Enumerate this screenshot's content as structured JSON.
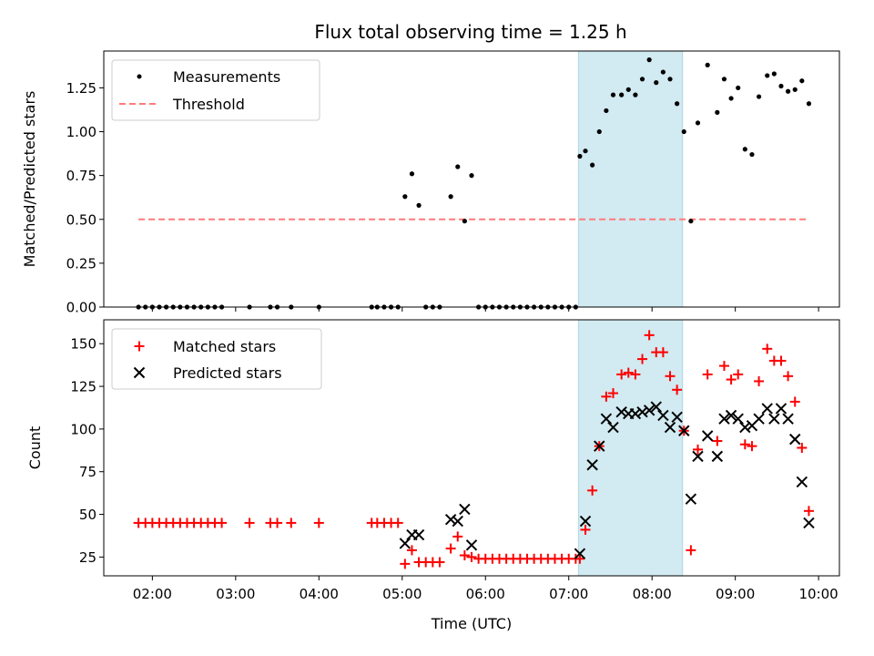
{
  "chart_data": {
    "title": "Flux total observing time = 1.25 h",
    "xlabel": "Time (UTC)",
    "x_range": [
      "01:25",
      "10:15"
    ],
    "x_ticks": [
      "02:00",
      "03:00",
      "04:00",
      "05:00",
      "06:00",
      "07:00",
      "08:00",
      "09:00",
      "10:00"
    ],
    "highlight_span": [
      "07:07",
      "08:22"
    ],
    "highlight_color": "#add8e6",
    "panels": [
      {
        "id": "ratio",
        "type": "scatter",
        "ylabel": "Matched/Predicted stars",
        "ylim": [
          0,
          1.46
        ],
        "y_ticks": [
          "0.00",
          "0.25",
          "0.50",
          "0.75",
          "1.00",
          "1.25"
        ],
        "legend_position": "top-left",
        "series": [
          {
            "name": "Measurements",
            "marker": "dot",
            "color": "#000000",
            "points": [
              [
                "01:50",
                0
              ],
              [
                "01:55",
                0
              ],
              [
                "02:00",
                0
              ],
              [
                "02:05",
                0
              ],
              [
                "02:10",
                0
              ],
              [
                "02:15",
                0
              ],
              [
                "02:20",
                0
              ],
              [
                "02:25",
                0
              ],
              [
                "02:30",
                0
              ],
              [
                "02:35",
                0
              ],
              [
                "02:40",
                0
              ],
              [
                "02:45",
                0
              ],
              [
                "02:50",
                0
              ],
              [
                "03:10",
                0
              ],
              [
                "03:25",
                0
              ],
              [
                "03:30",
                0
              ],
              [
                "03:40",
                0
              ],
              [
                "04:00",
                0
              ],
              [
                "04:38",
                0
              ],
              [
                "04:42",
                0
              ],
              [
                "04:47",
                0
              ],
              [
                "04:52",
                0
              ],
              [
                "04:57",
                0
              ],
              [
                "05:02",
                0.63
              ],
              [
                "05:07",
                0.76
              ],
              [
                "05:12",
                0.58
              ],
              [
                "05:17",
                0
              ],
              [
                "05:22",
                0
              ],
              [
                "05:27",
                0
              ],
              [
                "05:35",
                0.63
              ],
              [
                "05:40",
                0.8
              ],
              [
                "05:45",
                0.49
              ],
              [
                "05:50",
                0.75
              ],
              [
                "05:55",
                0
              ],
              [
                "06:00",
                0
              ],
              [
                "06:05",
                0
              ],
              [
                "06:10",
                0
              ],
              [
                "06:15",
                0
              ],
              [
                "06:20",
                0
              ],
              [
                "06:25",
                0
              ],
              [
                "06:30",
                0
              ],
              [
                "06:35",
                0
              ],
              [
                "06:40",
                0
              ],
              [
                "06:45",
                0
              ],
              [
                "06:50",
                0
              ],
              [
                "06:55",
                0
              ],
              [
                "07:00",
                0
              ],
              [
                "07:05",
                0
              ],
              [
                "07:08",
                0.86
              ],
              [
                "07:12",
                0.89
              ],
              [
                "07:17",
                0.81
              ],
              [
                "07:22",
                1.0
              ],
              [
                "07:27",
                1.12
              ],
              [
                "07:32",
                1.21
              ],
              [
                "07:38",
                1.21
              ],
              [
                "07:43",
                1.24
              ],
              [
                "07:48",
                1.21
              ],
              [
                "07:53",
                1.3
              ],
              [
                "07:58",
                1.41
              ],
              [
                "08:03",
                1.28
              ],
              [
                "08:08",
                1.34
              ],
              [
                "08:13",
                1.3
              ],
              [
                "08:18",
                1.16
              ],
              [
                "08:23",
                1.0
              ],
              [
                "08:28",
                0.49
              ],
              [
                "08:33",
                1.05
              ],
              [
                "08:40",
                1.38
              ],
              [
                "08:47",
                1.11
              ],
              [
                "08:52",
                1.3
              ],
              [
                "08:57",
                1.19
              ],
              [
                "09:02",
                1.25
              ],
              [
                "09:07",
                0.9
              ],
              [
                "09:12",
                0.87
              ],
              [
                "09:17",
                1.2
              ],
              [
                "09:23",
                1.32
              ],
              [
                "09:28",
                1.33
              ],
              [
                "09:33",
                1.26
              ],
              [
                "09:38",
                1.23
              ],
              [
                "09:43",
                1.24
              ],
              [
                "09:48",
                1.29
              ],
              [
                "09:53",
                1.16
              ]
            ]
          },
          {
            "name": "Threshold",
            "marker": "dashed-line",
            "color": "#ff7a7a",
            "value": 0.5,
            "x_span": [
              "01:50",
              "09:53"
            ]
          }
        ]
      },
      {
        "id": "counts",
        "type": "scatter",
        "ylabel": "Count",
        "ylim": [
          14,
          164
        ],
        "y_ticks": [
          "25",
          "50",
          "75",
          "100",
          "125",
          "150"
        ],
        "legend_position": "top-left",
        "series": [
          {
            "name": "Matched stars",
            "marker": "plus",
            "color": "#ff0000",
            "points": [
              [
                "01:50",
                45
              ],
              [
                "01:55",
                45
              ],
              [
                "02:00",
                45
              ],
              [
                "02:05",
                45
              ],
              [
                "02:10",
                45
              ],
              [
                "02:15",
                45
              ],
              [
                "02:20",
                45
              ],
              [
                "02:25",
                45
              ],
              [
                "02:30",
                45
              ],
              [
                "02:35",
                45
              ],
              [
                "02:40",
                45
              ],
              [
                "02:45",
                45
              ],
              [
                "02:50",
                45
              ],
              [
                "03:10",
                45
              ],
              [
                "03:25",
                45
              ],
              [
                "03:30",
                45
              ],
              [
                "03:40",
                45
              ],
              [
                "04:00",
                45
              ],
              [
                "04:38",
                45
              ],
              [
                "04:42",
                45
              ],
              [
                "04:47",
                45
              ],
              [
                "04:52",
                45
              ],
              [
                "04:57",
                45
              ],
              [
                "05:02",
                21
              ],
              [
                "05:07",
                29
              ],
              [
                "05:12",
                22
              ],
              [
                "05:17",
                22
              ],
              [
                "05:22",
                22
              ],
              [
                "05:27",
                22
              ],
              [
                "05:35",
                30
              ],
              [
                "05:40",
                37
              ],
              [
                "05:45",
                26
              ],
              [
                "05:50",
                25
              ],
              [
                "05:55",
                24
              ],
              [
                "06:00",
                24
              ],
              [
                "06:05",
                24
              ],
              [
                "06:10",
                24
              ],
              [
                "06:15",
                24
              ],
              [
                "06:20",
                24
              ],
              [
                "06:25",
                24
              ],
              [
                "06:30",
                24
              ],
              [
                "06:35",
                24
              ],
              [
                "06:40",
                24
              ],
              [
                "06:45",
                24
              ],
              [
                "06:50",
                24
              ],
              [
                "06:55",
                24
              ],
              [
                "07:00",
                24
              ],
              [
                "07:05",
                24
              ],
              [
                "07:08",
                24
              ],
              [
                "07:12",
                41
              ],
              [
                "07:17",
                64
              ],
              [
                "07:22",
                90
              ],
              [
                "07:27",
                119
              ],
              [
                "07:32",
                121
              ],
              [
                "07:38",
                132
              ],
              [
                "07:43",
                133
              ],
              [
                "07:48",
                132
              ],
              [
                "07:53",
                141
              ],
              [
                "07:58",
                155
              ],
              [
                "08:03",
                145
              ],
              [
                "08:08",
                145
              ],
              [
                "08:13",
                131
              ],
              [
                "08:18",
                123
              ],
              [
                "08:23",
                99
              ],
              [
                "08:28",
                29
              ],
              [
                "08:33",
                88
              ],
              [
                "08:40",
                132
              ],
              [
                "08:47",
                93
              ],
              [
                "08:52",
                137
              ],
              [
                "08:57",
                129
              ],
              [
                "09:02",
                132
              ],
              [
                "09:07",
                91
              ],
              [
                "09:12",
                90
              ],
              [
                "09:17",
                128
              ],
              [
                "09:23",
                147
              ],
              [
                "09:28",
                140
              ],
              [
                "09:33",
                140
              ],
              [
                "09:38",
                131
              ],
              [
                "09:43",
                116
              ],
              [
                "09:48",
                89
              ],
              [
                "09:53",
                52
              ]
            ]
          },
          {
            "name": "Predicted stars",
            "marker": "x",
            "color": "#000000",
            "points": [
              [
                "05:02",
                33
              ],
              [
                "05:07",
                38
              ],
              [
                "05:12",
                38
              ],
              [
                "05:35",
                47
              ],
              [
                "05:40",
                46
              ],
              [
                "05:45",
                53
              ],
              [
                "05:50",
                32
              ],
              [
                "07:08",
                27
              ],
              [
                "07:12",
                46
              ],
              [
                "07:17",
                79
              ],
              [
                "07:22",
                90
              ],
              [
                "07:27",
                106
              ],
              [
                "07:32",
                101
              ],
              [
                "07:38",
                110
              ],
              [
                "07:43",
                109
              ],
              [
                "07:48",
                109
              ],
              [
                "07:53",
                110
              ],
              [
                "07:58",
                111
              ],
              [
                "08:03",
                113
              ],
              [
                "08:08",
                108
              ],
              [
                "08:13",
                101
              ],
              [
                "08:18",
                107
              ],
              [
                "08:23",
                99
              ],
              [
                "08:28",
                59
              ],
              [
                "08:33",
                84
              ],
              [
                "08:40",
                96
              ],
              [
                "08:47",
                84
              ],
              [
                "08:52",
                106
              ],
              [
                "08:57",
                108
              ],
              [
                "09:02",
                106
              ],
              [
                "09:07",
                101
              ],
              [
                "09:12",
                102
              ],
              [
                "09:17",
                106
              ],
              [
                "09:23",
                112
              ],
              [
                "09:28",
                106
              ],
              [
                "09:33",
                112
              ],
              [
                "09:38",
                106
              ],
              [
                "09:43",
                94
              ],
              [
                "09:48",
                69
              ],
              [
                "09:53",
                45
              ]
            ]
          }
        ]
      }
    ]
  }
}
